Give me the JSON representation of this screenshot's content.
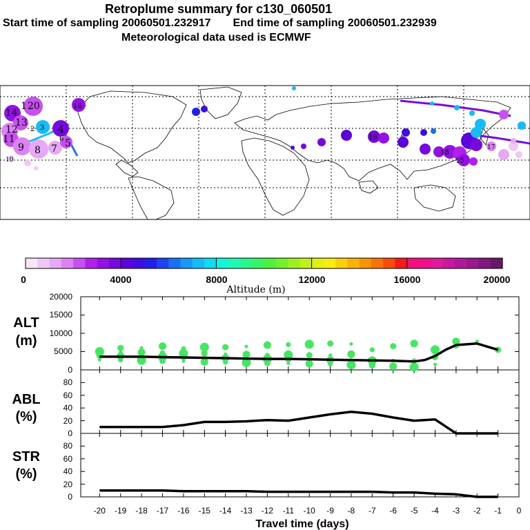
{
  "header": {
    "title": "Retroplume summary for c130_060501",
    "start_label": "Start time of sampling 20060501.232917",
    "end_label": "End time of sampling 20060501.232939",
    "met_label": "Meteorological data used is ECMWF"
  },
  "colorbar": {
    "title": "Altitude (m)",
    "tick_labels": [
      "0",
      "4000",
      "8000",
      "12000",
      "16000",
      "20000"
    ],
    "colors": [
      "#f8e6f8",
      "#f0c8f8",
      "#e8a8f8",
      "#dc82f4",
      "#c850f0",
      "#b020e8",
      "#9410e4",
      "#7808e0",
      "#5c04dc",
      "#3c10e0",
      "#2020e8",
      "#1e44f0",
      "#1a70f4",
      "#1898f8",
      "#14bcf8",
      "#10dcf4",
      "#14f4d8",
      "#20f8b4",
      "#28f88c",
      "#38f464",
      "#50f040",
      "#74f028",
      "#9cf020",
      "#c0f018",
      "#e0f014",
      "#f8ec10",
      "#f8d00c",
      "#f8b408",
      "#f89408",
      "#f87408",
      "#f84c0c",
      "#f81818",
      "#f8107c",
      "#f0108c",
      "#e0189c",
      "#c818a0",
      "#b0189c",
      "#981890",
      "#801880",
      "#681868"
    ]
  },
  "map": {
    "labels": [
      "20",
      "1",
      "14",
      "13",
      "12",
      "11",
      "10",
      "9",
      "8",
      "7",
      "6",
      "5",
      "4",
      "3",
      "2",
      "16",
      "17",
      "15",
      "18",
      "19"
    ]
  },
  "chart_data": [
    {
      "type": "line",
      "panel": "ALT",
      "ylabel": "ALT\n(m)",
      "ylim": [
        0,
        20000
      ],
      "yticks": [
        "20000",
        "15000",
        "10000",
        "5000",
        "0"
      ],
      "x": [
        -20,
        -19,
        -18,
        -17,
        -16,
        -15,
        -14,
        -13,
        -12,
        -11,
        -10,
        -9,
        -8,
        -7,
        -6,
        -5,
        -4.5,
        -4,
        -3.5,
        -3,
        -2,
        -1
      ],
      "series": [
        {
          "name": "mean altitude",
          "values": [
            3600,
            3600,
            3600,
            3500,
            3400,
            3300,
            3200,
            3100,
            3000,
            3000,
            2900,
            2800,
            2700,
            2600,
            2500,
            2300,
            2700,
            3800,
            5500,
            6800,
            7200,
            5500
          ]
        }
      ],
      "scatter": {
        "name": "plume altitudes",
        "x": [
          -20,
          -20,
          -20,
          -19,
          -19,
          -19,
          -19,
          -18,
          -18,
          -18,
          -18,
          -17,
          -17,
          -17,
          -17,
          -16,
          -16,
          -16,
          -16,
          -15,
          -15,
          -15,
          -15,
          -14,
          -14,
          -14,
          -14,
          -13,
          -13,
          -13,
          -13,
          -12,
          -12,
          -12,
          -12,
          -11,
          -11,
          -11,
          -11,
          -10,
          -10,
          -10,
          -10,
          -9,
          -9,
          -9,
          -9,
          -8,
          -8,
          -8,
          -8,
          -7,
          -7,
          -7,
          -6,
          -6,
          -6,
          -5,
          -5,
          -5,
          -4,
          -4,
          -4,
          -3,
          -3,
          -2,
          -1
        ],
        "y": [
          2800,
          3900,
          5000,
          2700,
          3800,
          4900,
          6000,
          2600,
          3700,
          4800,
          6000,
          2500,
          3600,
          4700,
          6500,
          2400,
          3500,
          4500,
          5800,
          2200,
          3400,
          4500,
          6200,
          2100,
          3200,
          4300,
          6200,
          2000,
          3100,
          4200,
          6400,
          1900,
          3000,
          4000,
          6800,
          1800,
          2900,
          4100,
          6900,
          1700,
          2800,
          4000,
          7000,
          1600,
          2700,
          4000,
          7200,
          1400,
          2600,
          4300,
          7100,
          1200,
          2500,
          5500,
          1000,
          2600,
          6500,
          800,
          2500,
          7200,
          1500,
          3500,
          5500,
          6500,
          7800,
          7800,
          5500
        ]
      }
    },
    {
      "type": "line",
      "panel": "ABL",
      "ylabel": "ABL\n(%)",
      "ylim": [
        0,
        100
      ],
      "yticks": [
        "80",
        "60",
        "40",
        "20",
        "0"
      ],
      "x": [
        -20,
        -19,
        -18,
        -17,
        -16,
        -15,
        -14,
        -13,
        -12,
        -11,
        -10,
        -9,
        -8,
        -7,
        -6,
        -5,
        -4,
        -3,
        -2,
        -1
      ],
      "series": [
        {
          "name": "ABL fraction",
          "values": [
            10,
            10,
            10,
            10,
            13,
            18,
            18,
            19,
            21,
            20,
            25,
            30,
            34,
            31,
            25,
            20,
            22,
            0,
            0,
            0
          ]
        }
      ]
    },
    {
      "type": "line",
      "panel": "STR",
      "ylabel": "STR\n(%)",
      "ylim": [
        0,
        100
      ],
      "yticks": [
        "80",
        "60",
        "40",
        "20",
        "0"
      ],
      "xlabel": "Travel time (days)",
      "xticks": [
        "-20",
        "-19",
        "-18",
        "-17",
        "-16",
        "-15",
        "-14",
        "-13",
        "-12",
        "-11",
        "-10",
        "-9",
        "-8",
        "-7",
        "-6",
        "-5",
        "-4",
        "-3",
        "-2",
        "-1",
        "0"
      ],
      "x": [
        -20,
        -19,
        -18,
        -17,
        -16,
        -15,
        -14,
        -13,
        -12,
        -11,
        -10,
        -9,
        -8,
        -7,
        -6,
        -5,
        -4,
        -3,
        -2,
        -1
      ],
      "series": [
        {
          "name": "STR fraction",
          "values": [
            10,
            10,
            10,
            10,
            9,
            9,
            9,
            9,
            8,
            8,
            8,
            8,
            8,
            8,
            7,
            7,
            5,
            4,
            0,
            0
          ]
        }
      ]
    }
  ]
}
